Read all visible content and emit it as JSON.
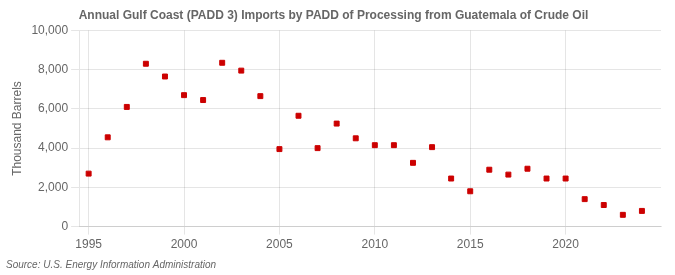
{
  "chart_data": {
    "type": "scatter",
    "title": "Annual Gulf Coast (PADD 3) Imports by PADD of Processing from Guatemala of Crude Oil",
    "y_label": "Thousand Barrels",
    "annotations": [
      "Source: U.S. Energy Information Administration"
    ],
    "x": [
      1995,
      1996,
      1997,
      1998,
      1999,
      2000,
      2001,
      2002,
      2003,
      2004,
      2005,
      2006,
      2007,
      2008,
      2009,
      2010,
      2011,
      2012,
      2013,
      2014,
      2015,
      2016,
      2017,
      2018,
      2019,
      2020,
      2021,
      2022,
      2023,
      2024
    ],
    "values": [
      2700,
      4550,
      6100,
      8300,
      7650,
      6700,
      6450,
      8350,
      7950,
      6650,
      3950,
      5650,
      4000,
      5250,
      4500,
      4150,
      4150,
      3250,
      4050,
      2450,
      1800,
      2900,
      2650,
      2950,
      2450,
      2450,
      1400,
      1100,
      600,
      800
    ],
    "color": "#cc0000",
    "marker": "square",
    "xlim": [
      1994.5,
      2025
    ],
    "xticks": [
      1995,
      2000,
      2005,
      2010,
      2015,
      2020
    ],
    "ylim": [
      0,
      10000
    ],
    "yticks": [
      0,
      {
        "value": 2000,
        "label": "2,000"
      },
      {
        "value": 4000,
        "label": "4,000"
      },
      {
        "value": 6000,
        "label": "6,000"
      },
      {
        "value": 8000,
        "label": "8,000"
      },
      {
        "value": 10000,
        "label": "10,000"
      }
    ],
    "grid": true
  }
}
